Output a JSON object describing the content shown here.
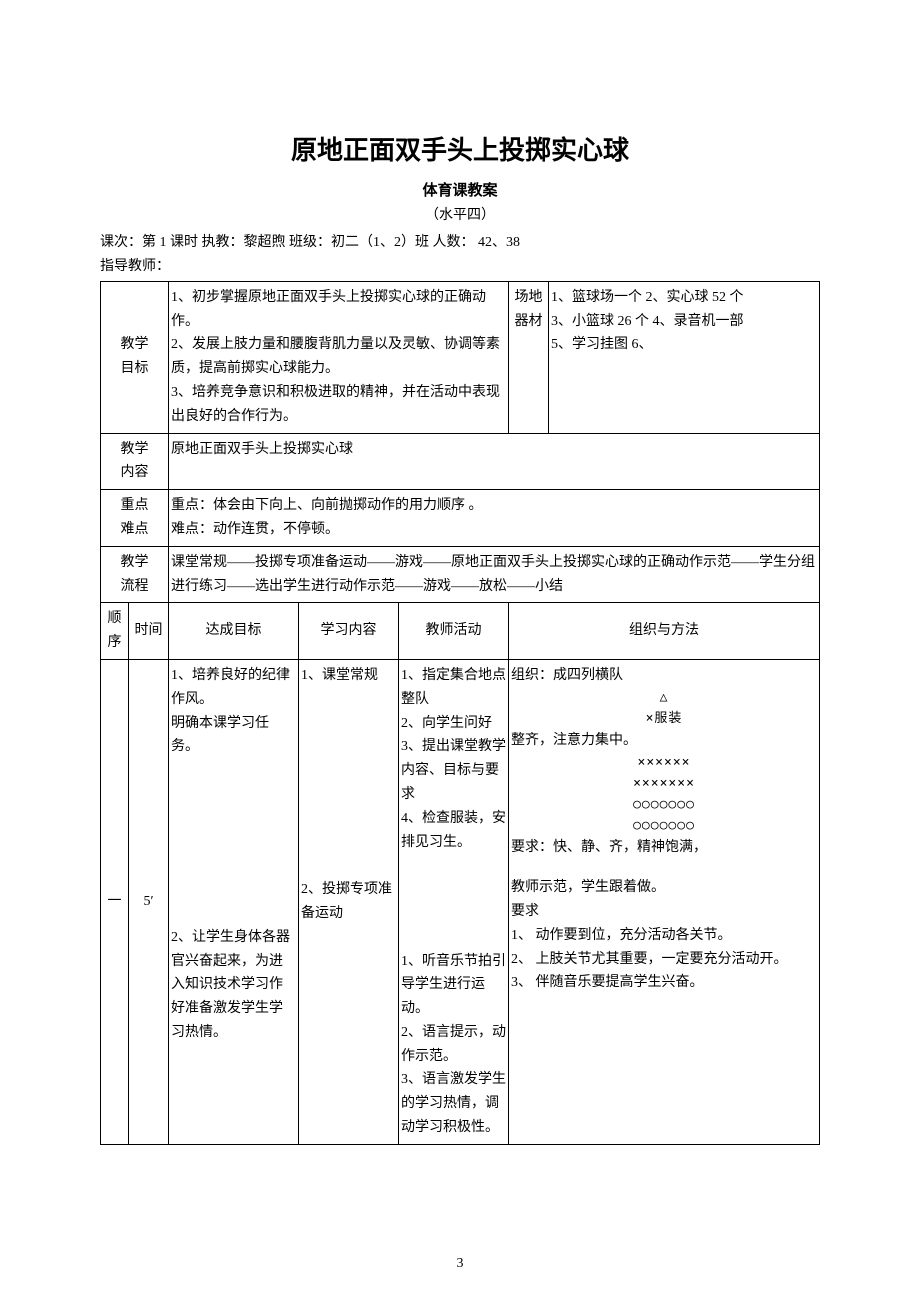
{
  "colors": {
    "text": "#000000",
    "background": "#ffffff",
    "border": "#000000"
  },
  "fonts": {
    "body": "SimSun",
    "heading": "SimHei",
    "title_size_pt": 26,
    "subtitle_size_pt": 15,
    "body_size_pt": 14
  },
  "page_number": "3",
  "header": {
    "title": "原地正面双手头上投掷实心球",
    "subtitle": "体育课教案",
    "level": "（水平四）",
    "meta_line1_prefix": "课次：第 1 课时    执教：黎超煦      班级：初二（1、2）班      人数： 42、38",
    "meta_line2": "指导教师："
  },
  "rows": {
    "goal_label": "教学\n目标",
    "goal_text": "1、初步掌握原地正面双手头上投掷实心球的正确动作。\n2、发展上肢力量和腰腹背肌力量以及灵敏、协调等素质，提高前掷实心球能力。\n3、培养竞争意识和积极进取的精神，并在活动中表现出良好的合作行为。",
    "equip_label": "场地\n器材",
    "equip_text": "1、篮球场一个  2、实心球 52 个\n3、小篮球 26 个 4、录音机一部\n5、学习挂图    6、",
    "content_label": "教学\n内容",
    "content_text": "原地正面双手头上投掷实心球",
    "keypoint_label": "重点\n难点",
    "keypoint_text": "重点：体会由下向上、向前抛掷动作的用力顺序 。\n难点：动作连贯，不停顿。",
    "flow_label": "教学\n流程",
    "flow_text": "课堂常规——投掷专项准备运动——游戏——原地正面双手头上投掷实心球的正确动作示范——学生分组进行练习——选出学生进行动作示范——游戏——放松——小结"
  },
  "columns": {
    "seq": "顺\n序",
    "time": "时间",
    "achieve": "达成目标",
    "study": "学习内容",
    "teacher": "教师活动",
    "org": "组织与方法"
  },
  "stage1": {
    "seq": "一",
    "time": "5′",
    "achieve": "1、培养良好的纪律作风。\n明确本课学习任务。\n\n\n\n\n\n\n\n2、让学生身体各器官兴奋起来，为进入知识技术学习作好准备激发学生学习热情。",
    "study": "1、课堂常规\n\n\n\n\n\n\n\n\n2、投掷专项准备运动",
    "teacher": "1、指定集合地点整队\n2、向学生问好\n3、提出课堂教学内容、目标与要求\n4、检查服装，安排见习生。\n\n\n\n\n1、听音乐节拍引导学生进行运动。\n2、语言提示，动作示范。\n3、语言激发学生的学习热情，调动学习积极性。",
    "org_text_top": "组织：成四列横队",
    "org_formation_tri": "△",
    "org_formation_x1": "×服装",
    "org_text_neat": "整齐，注意力集中。",
    "org_formation_x2": "××××××",
    "org_formation_x3": "×××××××",
    "org_formation_o1": "○○○○○○○",
    "org_formation_o2": "○○○○○○○",
    "org_req1": "要求：快、静、齐，精神饱满，",
    "org_demo": "教师示范，学生跟着做。",
    "org_req_label": "要求",
    "org_req_item1": "1、   动作要到位，充分活动各关节。",
    "org_req_item2": "2、   上肢关节尤其重要，一定要充分活动开。",
    "org_req_item3": "3、   伴随音乐要提高学生兴奋。"
  }
}
